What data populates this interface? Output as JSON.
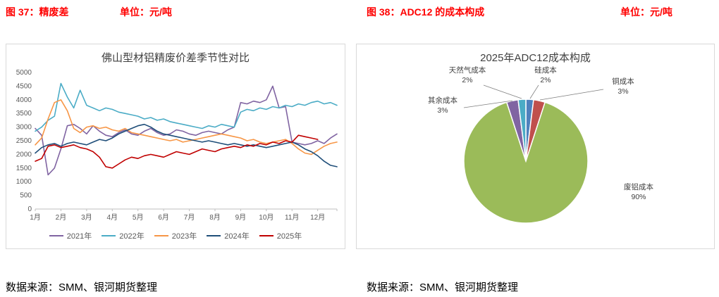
{
  "header": {
    "fig37_title": "图 37：精废差",
    "fig37_unit": "单位：元/吨",
    "fig38_title": "图 38：ADC12 的成本构成",
    "fig38_unit": "单位：元/吨",
    "accent_color": "#ff0000"
  },
  "footer": {
    "source_left": "数据来源：SMM、银河期货整理",
    "source_right": "数据来源：SMM、银河期货整理"
  },
  "chart_data": [
    {
      "type": "line",
      "title": "佛山型材铝精废价差季节性对比",
      "unit": "元/吨",
      "x_ticks": [
        "1月",
        "2月",
        "3月",
        "4月",
        "5月",
        "6月",
        "7月",
        "8月",
        "9月",
        "10月",
        "11月",
        "12月"
      ],
      "points_per_month": 4,
      "ylim": [
        0,
        5000
      ],
      "y_ticks": [
        0,
        500,
        1000,
        1500,
        2000,
        2500,
        3000,
        3500,
        4000,
        4500,
        5000
      ],
      "grid": false,
      "legend_position": "bottom",
      "series": [
        {
          "name": "2021年",
          "key": "2021",
          "color": "#8064A2",
          "values": [
            2950,
            2700,
            1250,
            1500,
            2200,
            3050,
            3100,
            2950,
            2750,
            3050,
            2850,
            2700,
            2650,
            2800,
            2900,
            2750,
            2700,
            2850,
            2950,
            2800,
            2700,
            2750,
            2900,
            2850,
            2750,
            2700,
            2800,
            2850,
            2800,
            2750,
            2900,
            3000,
            3900,
            3850,
            3950,
            3900,
            4000,
            4500,
            3700,
            3750,
            2450,
            2400,
            2350,
            2400,
            2500,
            2400,
            2600,
            2750
          ]
        },
        {
          "name": "2022年",
          "key": "2022",
          "color": "#4BACC6",
          "values": [
            2850,
            3000,
            3250,
            3400,
            4600,
            4100,
            3700,
            4350,
            3800,
            3700,
            3600,
            3700,
            3650,
            3550,
            3500,
            3450,
            3400,
            3300,
            3350,
            3250,
            3300,
            3200,
            3150,
            3100,
            3050,
            3000,
            2950,
            3050,
            3000,
            3100,
            3050,
            3000,
            3550,
            3650,
            3600,
            3700,
            3650,
            3750,
            3700,
            3800,
            3750,
            3850,
            3800,
            3900,
            3950,
            3850,
            3900,
            3800
          ]
        },
        {
          "name": "2023年",
          "key": "2023",
          "color": "#F79646",
          "values": [
            2350,
            2600,
            3300,
            3900,
            4000,
            3600,
            2950,
            2800,
            3000,
            3050,
            2950,
            3000,
            2900,
            2850,
            2950,
            2800,
            2750,
            2700,
            2650,
            2600,
            2550,
            2500,
            2550,
            2450,
            2500,
            2550,
            2600,
            2650,
            2700,
            2750,
            2700,
            2650,
            2600,
            2500,
            2550,
            2450,
            2400,
            2450,
            2500,
            2550,
            2400,
            2200,
            2050,
            2000,
            2150,
            2300,
            2400,
            2450
          ]
        },
        {
          "name": "2024年",
          "key": "2024",
          "color": "#1F4E79",
          "values": [
            2050,
            2250,
            2350,
            2400,
            2300,
            2400,
            2450,
            2400,
            2350,
            2450,
            2550,
            2500,
            2600,
            2750,
            2850,
            2950,
            3050,
            3100,
            3000,
            2850,
            2750,
            2700,
            2650,
            2600,
            2550,
            2500,
            2450,
            2500,
            2450,
            2400,
            2350,
            2400,
            2350,
            2300,
            2350,
            2300,
            2250,
            2300,
            2350,
            2400,
            2450,
            2350,
            2200,
            2100,
            1950,
            1750,
            1600,
            1550
          ]
        },
        {
          "name": "2025年",
          "key": "2025",
          "color": "#C00000",
          "values": [
            1750,
            1850,
            2300,
            2350,
            2250,
            2300,
            2350,
            2250,
            2200,
            2100,
            1900,
            1550,
            1500,
            1650,
            1800,
            1900,
            1850,
            1950,
            2000,
            1950,
            1900,
            2000,
            2100,
            2050,
            2000,
            2100,
            2200,
            2150,
            2100,
            2200,
            2250,
            2300,
            2250,
            2350,
            2300,
            2400,
            2350,
            2450,
            2400,
            2500,
            2450,
            2700,
            2650,
            2600,
            2550,
            null,
            null,
            null
          ]
        }
      ]
    },
    {
      "type": "pie",
      "title": "2025年ADC12成本构成",
      "unit": "元/吨",
      "start_angle_deg": 0,
      "direction": "clockwise",
      "slices": [
        {
          "label": "硅成本",
          "key": "silicon",
          "pct": 2,
          "color": "#4F81BD"
        },
        {
          "label": "铜成本",
          "key": "copper",
          "pct": 3,
          "color": "#C0504D"
        },
        {
          "label": "废铝成本",
          "key": "scrap-aluminum",
          "pct": 90,
          "color": "#9BBB59"
        },
        {
          "label": "其余成本",
          "key": "other",
          "pct": 3,
          "color": "#8064A2"
        },
        {
          "label": "天然气成本",
          "key": "natural-gas",
          "pct": 2,
          "color": "#4BACC6"
        }
      ]
    }
  ]
}
